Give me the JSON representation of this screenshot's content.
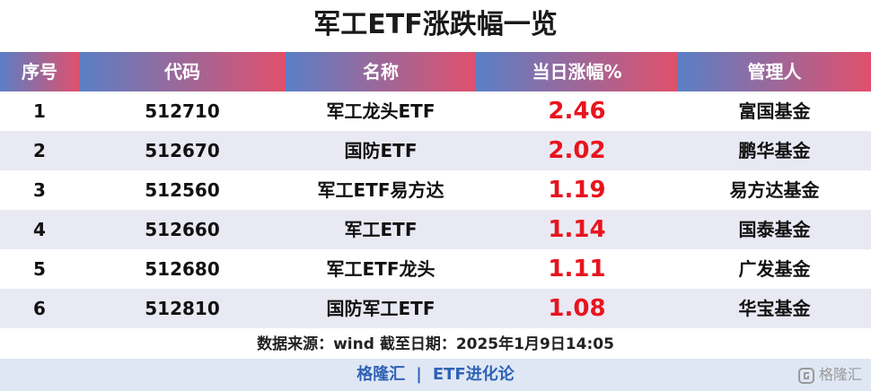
{
  "header": {
    "title": "军工ETF涨跌幅一览"
  },
  "table": {
    "columns": [
      "序号",
      "代码",
      "名称",
      "当日涨幅%",
      "管理人"
    ],
    "rows": [
      [
        "1",
        "512710",
        "军工龙头ETF",
        "2.46",
        "富国基金"
      ],
      [
        "2",
        "512670",
        "国防ETF",
        "2.02",
        "鹏华基金"
      ],
      [
        "3",
        "512560",
        "军工ETF易方达",
        "1.19",
        "易方达基金"
      ],
      [
        "4",
        "512660",
        "军工ETF",
        "1.14",
        "国泰基金"
      ],
      [
        "5",
        "512680",
        "军工ETF龙头",
        "1.11",
        "广发基金"
      ],
      [
        "6",
        "512810",
        "国防军工ETF",
        "1.08",
        "华宝基金"
      ]
    ]
  },
  "footer": {
    "source": "数据来源：wind  截至日期：2025年1月9日14:05",
    "brand": "格隆汇",
    "separator": "|",
    "column": "ETF进化论",
    "watermark": "格隆汇"
  }
}
